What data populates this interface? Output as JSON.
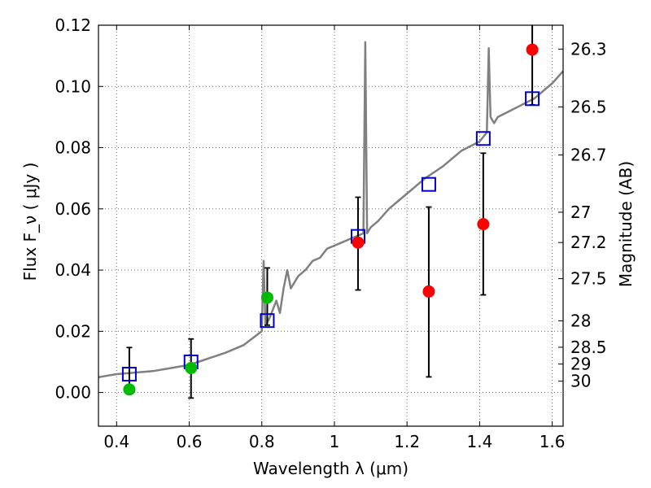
{
  "chart_data": {
    "type": "scatter",
    "title": "",
    "xlabel": "Wavelength  λ (μm)",
    "ylabel": "Flux  F_ν  ( μJy )",
    "y2label": "Magnitude (AB)",
    "xlim": [
      0.35,
      1.63
    ],
    "ylim": [
      -0.011,
      0.12
    ],
    "grid": true,
    "x_ticks": [
      0.4,
      0.6,
      0.8,
      1.0,
      1.2,
      1.4,
      1.6
    ],
    "x_tick_labels": [
      "0.4",
      "0.6",
      "0.8",
      "1",
      "1.2",
      "1.4",
      "1.6"
    ],
    "y_ticks": [
      0.0,
      0.02,
      0.04,
      0.06,
      0.08,
      0.1,
      0.12
    ],
    "y_tick_labels": [
      "0.00",
      "0.02",
      "0.04",
      "0.06",
      "0.08",
      "0.10",
      "0.12"
    ],
    "mag_ticks": [
      {
        "label": "26.3",
        "flux": 0.1122
      },
      {
        "label": "26.5",
        "flux": 0.0933
      },
      {
        "label": "26.7",
        "flux": 0.0776
      },
      {
        "label": "27",
        "flux": 0.0589
      },
      {
        "label": "27.2",
        "flux": 0.049
      },
      {
        "label": "27.5",
        "flux": 0.0372
      },
      {
        "label": "28",
        "flux": 0.0234
      },
      {
        "label": "28.5",
        "flux": 0.0148
      },
      {
        "label": "29",
        "flux": 0.0093
      },
      {
        "label": "30",
        "flux": 0.0037
      }
    ],
    "series": [
      {
        "kind": "line",
        "color": "#808080",
        "x": [
          0.35,
          0.4,
          0.45,
          0.5,
          0.55,
          0.6,
          0.65,
          0.7,
          0.75,
          0.8,
          0.805,
          0.81,
          0.82,
          0.84,
          0.85,
          0.86,
          0.87,
          0.88,
          0.9,
          0.92,
          0.94,
          0.96,
          0.98,
          1.0,
          1.02,
          1.04,
          1.06,
          1.08,
          1.085,
          1.09,
          1.1,
          1.12,
          1.15,
          1.18,
          1.2,
          1.25,
          1.3,
          1.35,
          1.4,
          1.42,
          1.425,
          1.43,
          1.44,
          1.45,
          1.5,
          1.55,
          1.6,
          1.63
        ],
        "y": [
          0.005,
          0.006,
          0.0065,
          0.007,
          0.008,
          0.009,
          0.011,
          0.013,
          0.0155,
          0.02,
          0.043,
          0.022,
          0.024,
          0.03,
          0.026,
          0.034,
          0.04,
          0.034,
          0.038,
          0.04,
          0.043,
          0.044,
          0.047,
          0.048,
          0.049,
          0.05,
          0.051,
          0.052,
          0.1145,
          0.052,
          0.054,
          0.056,
          0.06,
          0.063,
          0.065,
          0.07,
          0.074,
          0.079,
          0.082,
          0.085,
          0.1125,
          0.09,
          0.088,
          0.09,
          0.093,
          0.096,
          0.101,
          0.105
        ]
      },
      {
        "kind": "points",
        "marker": "square",
        "color": "#0000cc",
        "x": [
          0.435,
          0.605,
          0.815,
          1.065,
          1.26,
          1.41,
          1.545
        ],
        "y": [
          0.006,
          0.01,
          0.0235,
          0.051,
          0.068,
          0.083,
          0.096
        ]
      },
      {
        "kind": "points",
        "marker": "circle",
        "color": "#00bb00",
        "x": [
          0.435,
          0.605,
          0.815
        ],
        "y": [
          0.001,
          0.008,
          0.031
        ],
        "err_low": [
          0.001,
          0.0098,
          0.009
        ],
        "err_high": [
          0.0137,
          0.0095,
          0.0097
        ]
      },
      {
        "kind": "points",
        "marker": "circle",
        "color": "#ff0000",
        "x": [
          1.065,
          1.26,
          1.41,
          1.545
        ],
        "y": [
          0.049,
          0.033,
          0.055,
          0.112
        ],
        "err_low": [
          0.0155,
          0.0279,
          0.0231,
          0.018
        ],
        "err_high": [
          0.0148,
          0.0276,
          0.0232,
          0.0112
        ]
      }
    ]
  }
}
